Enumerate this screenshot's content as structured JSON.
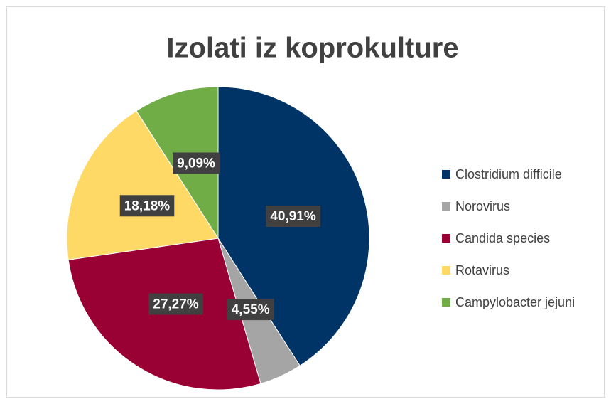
{
  "chart_data": {
    "type": "pie",
    "title": "Izolati iz koprokulture",
    "categories": [
      "Clostridium difficile",
      "Norovirus",
      "Candida species",
      "Rotavirus",
      "Campylobacter jejuni"
    ],
    "values": [
      40.91,
      4.55,
      27.27,
      18.18,
      9.09
    ],
    "value_labels": [
      "40,91%",
      "4,55%",
      "27,27%",
      "18,18%",
      "9,09%"
    ],
    "colors": [
      "#003366",
      "#a5a5a5",
      "#990033",
      "#ffd966",
      "#70ad47"
    ],
    "legend": "right"
  }
}
